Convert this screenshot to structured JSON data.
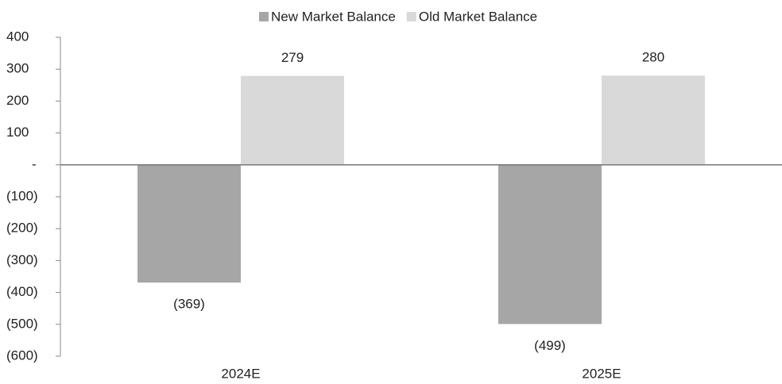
{
  "chart_data": {
    "type": "bar",
    "categories": [
      "2024E",
      "2025E"
    ],
    "series": [
      {
        "name": "New Market Balance",
        "color": "#a6a6a6",
        "values": [
          -369,
          -499
        ],
        "value_labels": [
          "(369)",
          "(499)"
        ]
      },
      {
        "name": "Old Market Balance",
        "color": "#d9d9d9",
        "values": [
          279,
          280
        ],
        "value_labels": [
          "279",
          "280"
        ]
      }
    ],
    "ylim": [
      -600,
      400
    ],
    "yticks": [
      400,
      300,
      200,
      100,
      {
        "value": 0,
        "label": "-"
      },
      {
        "value": -100,
        "label": "(100)"
      },
      {
        "value": -200,
        "label": "(200)"
      },
      {
        "value": -300,
        "label": "(300)"
      },
      {
        "value": -400,
        "label": "(400)"
      },
      {
        "value": -500,
        "label": "(500)"
      },
      {
        "value": -600,
        "label": "(600)"
      }
    ],
    "legend": "top"
  }
}
